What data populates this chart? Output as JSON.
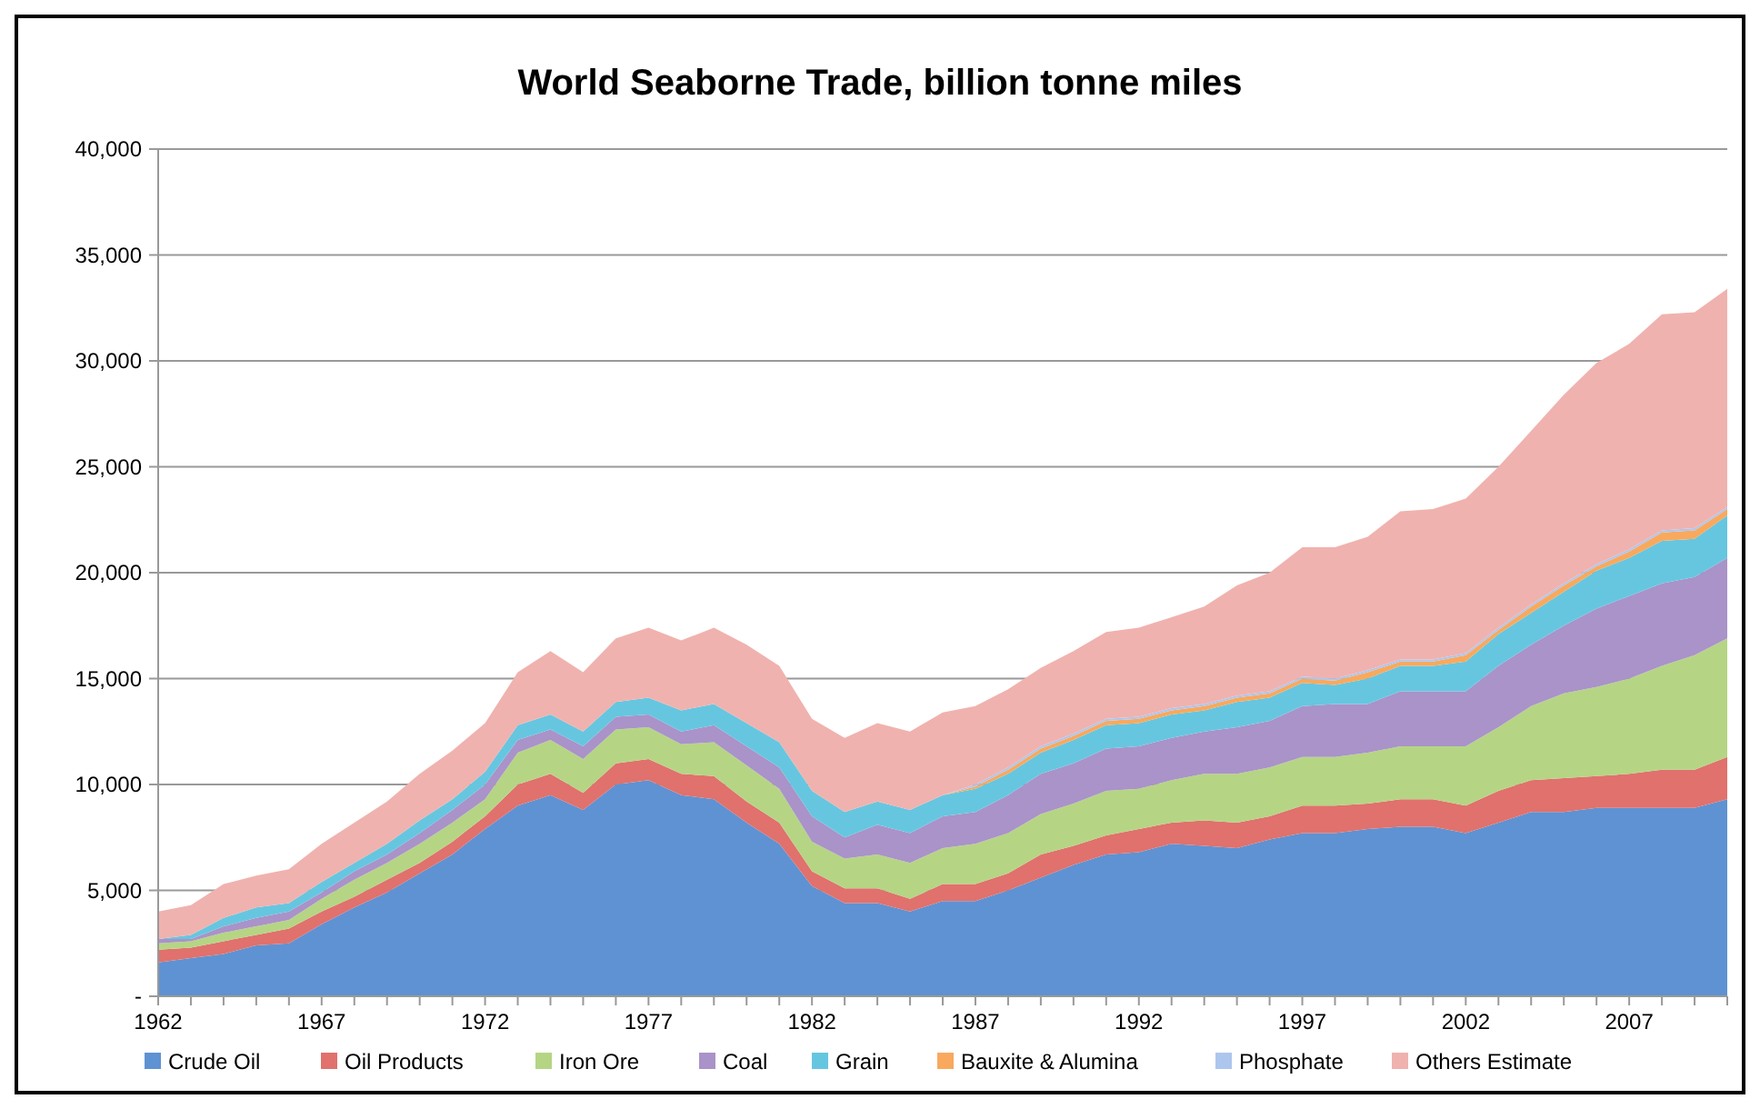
{
  "chart_data": {
    "type": "area",
    "stacked": true,
    "title": "World Seaborne Trade, billion tonne miles",
    "categories": [
      "1962",
      null,
      null,
      null,
      null,
      "1967",
      null,
      null,
      null,
      null,
      "1972",
      null,
      null,
      null,
      null,
      "1977",
      null,
      null,
      null,
      null,
      "1982",
      null,
      null,
      null,
      null,
      "1987",
      null,
      null,
      null,
      null,
      "1992",
      null,
      null,
      null,
      null,
      "1997",
      null,
      null,
      null,
      null,
      "2002",
      null,
      null,
      null,
      null,
      "2007",
      null,
      null,
      null
    ],
    "ylim": [
      0,
      40000
    ],
    "yticks": [
      {
        "value": 0,
        "label": "-"
      },
      {
        "value": 5000,
        "label": "5,000"
      },
      {
        "value": 10000,
        "label": "10,000"
      },
      {
        "value": 15000,
        "label": "15,000"
      },
      {
        "value": 20000,
        "label": "20,000"
      },
      {
        "value": 25000,
        "label": "25,000"
      },
      {
        "value": 30000,
        "label": "30,000"
      },
      {
        "value": 35000,
        "label": "35,000"
      },
      {
        "value": 40000,
        "label": "40,000"
      }
    ],
    "grid": "y",
    "legend": "bottom",
    "series": [
      {
        "name": "Crude Oil",
        "color": "#5f92d2",
        "values": [
          1600,
          1800,
          2000,
          2400,
          2500,
          3400,
          4200,
          4900,
          5800,
          6700,
          7900,
          9000,
          9500,
          8800,
          10000,
          10200,
          9500,
          9300,
          8200,
          7200,
          5200,
          4400,
          4400,
          4000,
          4500,
          4500,
          5000,
          5600,
          6200,
          6700,
          6800,
          7200,
          7100,
          7000,
          7400,
          7700,
          7700,
          7900,
          8000,
          8000,
          7700,
          8200,
          8700,
          8700,
          8900,
          8900,
          8900,
          8900,
          9300
        ]
      },
      {
        "name": "Oil Products",
        "color": "#e0716d",
        "values": [
          600,
          500,
          600,
          500,
          700,
          600,
          500,
          600,
          500,
          600,
          600,
          1000,
          1000,
          800,
          1000,
          1000,
          1000,
          1100,
          1000,
          1000,
          700,
          700,
          700,
          600,
          800,
          800,
          800,
          1100,
          900,
          900,
          1100,
          1000,
          1200,
          1200,
          1100,
          1300,
          1300,
          1200,
          1300,
          1300,
          1300,
          1500,
          1500,
          1600,
          1500,
          1600,
          1800,
          1800,
          2000
        ]
      },
      {
        "name": "Iron Ore",
        "color": "#b5d584",
        "values": [
          300,
          300,
          400,
          400,
          400,
          600,
          800,
          800,
          900,
          900,
          800,
          1500,
          1600,
          1600,
          1600,
          1500,
          1400,
          1600,
          1700,
          1600,
          1400,
          1400,
          1600,
          1700,
          1700,
          1900,
          1900,
          1900,
          2000,
          2100,
          1900,
          2000,
          2200,
          2300,
          2300,
          2300,
          2300,
          2400,
          2500,
          2500,
          2800,
          3000,
          3500,
          4000,
          4200,
          4500,
          4900,
          5400,
          5600
        ]
      },
      {
        "name": "Coal",
        "color": "#a993c8",
        "values": [
          200,
          100,
          300,
          400,
          400,
          300,
          400,
          400,
          500,
          600,
          700,
          600,
          500,
          600,
          600,
          600,
          600,
          800,
          900,
          1000,
          1200,
          1000,
          1400,
          1400,
          1500,
          1500,
          1800,
          1900,
          1900,
          2000,
          2000,
          2000,
          2000,
          2200,
          2200,
          2400,
          2500,
          2300,
          2600,
          2600,
          2600,
          2900,
          2900,
          3200,
          3700,
          3900,
          3900,
          3700,
          3800
        ]
      },
      {
        "name": "Grain",
        "color": "#66c6e0",
        "values": [
          0,
          200,
          400,
          500,
          400,
          500,
          400,
          500,
          600,
          500,
          600,
          700,
          700,
          700,
          700,
          800,
          1000,
          1000,
          1100,
          1200,
          1200,
          1200,
          1100,
          1100,
          1000,
          1100,
          1000,
          1000,
          1100,
          1100,
          1100,
          1100,
          1000,
          1200,
          1100,
          1100,
          900,
          1200,
          1200,
          1200,
          1400,
          1500,
          1500,
          1600,
          1800,
          1800,
          2000,
          1800,
          2000
        ]
      },
      {
        "name": "Bauxite & Alumina",
        "color": "#f8a95e",
        "values": [
          0,
          0,
          0,
          0,
          0,
          0,
          0,
          0,
          0,
          0,
          0,
          0,
          0,
          0,
          0,
          0,
          0,
          0,
          0,
          0,
          0,
          0,
          0,
          0,
          0,
          100,
          200,
          200,
          200,
          200,
          200,
          200,
          200,
          200,
          200,
          200,
          200,
          300,
          200,
          200,
          300,
          200,
          300,
          300,
          200,
          300,
          400,
          400,
          300
        ]
      },
      {
        "name": "Phosphate",
        "color": "#adc6ee",
        "values": [
          0,
          0,
          0,
          0,
          0,
          0,
          0,
          0,
          0,
          0,
          0,
          0,
          0,
          0,
          0,
          0,
          0,
          0,
          0,
          0,
          0,
          0,
          0,
          0,
          0,
          100,
          100,
          100,
          100,
          100,
          100,
          100,
          100,
          100,
          100,
          100,
          100,
          100,
          100,
          100,
          100,
          100,
          100,
          100,
          100,
          100,
          100,
          100,
          100
        ]
      },
      {
        "name": "Others Estimate",
        "color": "#f0b2ae",
        "values": [
          1300,
          1400,
          1600,
          1500,
          1600,
          1800,
          1900,
          2000,
          2200,
          2300,
          2300,
          2500,
          3000,
          2800,
          3000,
          3300,
          3300,
          3600,
          3700,
          3600,
          3400,
          3500,
          3700,
          3700,
          3900,
          3700,
          3700,
          3700,
          3900,
          4100,
          4200,
          4300,
          4600,
          5200,
          5600,
          6100,
          6200,
          6300,
          7000,
          7100,
          7300,
          7600,
          8200,
          8900,
          9500,
          9700,
          10200,
          10200,
          10300
        ]
      }
    ]
  }
}
